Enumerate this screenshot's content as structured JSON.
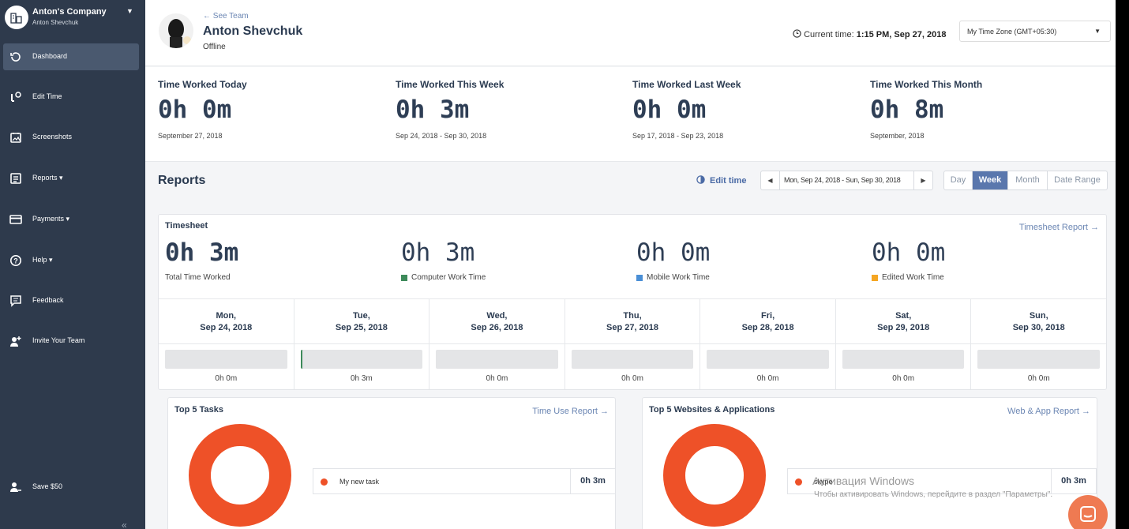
{
  "sidebar": {
    "company": "Anton's Company",
    "user": "Anton Shevchuk",
    "items": [
      {
        "label": "Dashboard",
        "icon": "history-icon"
      },
      {
        "label": "Edit Time",
        "icon": "edit-time-icon"
      },
      {
        "label": "Screenshots",
        "icon": "screenshots-icon"
      },
      {
        "label": "Reports ▾",
        "icon": "reports-icon"
      },
      {
        "label": "Payments ▾",
        "icon": "payments-icon"
      },
      {
        "label": "Help ▾",
        "icon": "help-icon"
      },
      {
        "label": "Feedback",
        "icon": "feedback-icon"
      },
      {
        "label": "Invite Your Team",
        "icon": "invite-icon"
      },
      {
        "label": "Save $50",
        "icon": "save-icon"
      }
    ],
    "collapse": "«"
  },
  "header": {
    "see_team": "← See Team",
    "name": "Anton Shevchuk",
    "status": "Offline",
    "current_time_label": "Current time:",
    "current_time_value": "1:15 PM, Sep 27, 2018",
    "timezone": "My Time Zone (GMT+05:30)"
  },
  "stats": [
    {
      "title": "Time Worked Today",
      "value": "0h 0m",
      "date": "September 27, 2018"
    },
    {
      "title": "Time Worked This Week",
      "value": "0h 3m",
      "date": "Sep 24, 2018 - Sep 30, 2018"
    },
    {
      "title": "Time Worked Last Week",
      "value": "0h 0m",
      "date": "Sep 17, 2018 - Sep 23, 2018"
    },
    {
      "title": "Time Worked This Month",
      "value": "0h 8m",
      "date": "September, 2018"
    }
  ],
  "reports": {
    "title": "Reports",
    "edit_time": "Edit time",
    "range": "Mon, Sep 24, 2018 - Sun, Sep 30, 2018",
    "views": [
      "Day",
      "Week",
      "Month",
      "Date Range"
    ],
    "active_view": "Week"
  },
  "timesheet": {
    "title": "Timesheet",
    "link": "Timesheet Report →",
    "summary": [
      {
        "value": "0h 3m",
        "label": "Total Time Worked",
        "color": ""
      },
      {
        "value": "0h 3m",
        "label": "Computer Work Time",
        "color": "#3d8a5a"
      },
      {
        "value": "0h 0m",
        "label": "Mobile Work Time",
        "color": "#4a8fd6"
      },
      {
        "value": "0h 0m",
        "label": "Edited Work Time",
        "color": "#f5a623"
      }
    ],
    "days": [
      {
        "day": "Mon,",
        "date": "Sep 24, 2018",
        "value": "0h 0m",
        "fill": 0
      },
      {
        "day": "Tue,",
        "date": "Sep 25, 2018",
        "value": "0h 3m",
        "fill": 0.015
      },
      {
        "day": "Wed,",
        "date": "Sep 26, 2018",
        "value": "0h 0m",
        "fill": 0
      },
      {
        "day": "Thu,",
        "date": "Sep 27, 2018",
        "value": "0h 0m",
        "fill": 0
      },
      {
        "day": "Fri,",
        "date": "Sep 28, 2018",
        "value": "0h 0m",
        "fill": 0
      },
      {
        "day": "Sat,",
        "date": "Sep 29, 2018",
        "value": "0h 0m",
        "fill": 0
      },
      {
        "day": "Sun,",
        "date": "Sep 30, 2018",
        "value": "0h 0m",
        "fill": 0
      }
    ]
  },
  "tasks": {
    "title": "Top 5 Tasks",
    "link": "Time Use Report →",
    "items": [
      {
        "name": "My new task",
        "value": "0h 3m"
      }
    ],
    "color": "#ee5128"
  },
  "apps": {
    "title": "Top 5 Websites & Applications",
    "link": "Web & App Report →",
    "items": [
      {
        "name": "skype",
        "value": "0h 3m"
      }
    ],
    "color": "#ee5128"
  },
  "watermark": {
    "line1": "Активация Windows",
    "line2": "Чтобы активировать Windows, перейдите в раздел \"Параметры\"."
  }
}
